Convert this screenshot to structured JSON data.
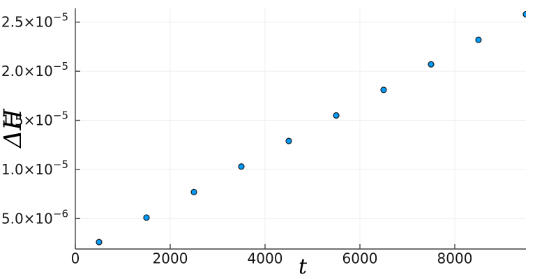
{
  "figure": {
    "background": "#ffffff"
  },
  "chart_data": {
    "type": "scatter",
    "title": "",
    "xlabel": "t",
    "ylabel": "ΔH",
    "x": [
      500,
      1500,
      2500,
      3500,
      4500,
      5500,
      6500,
      7500,
      8500,
      9500
    ],
    "y": [
      2.6e-06,
      5.1e-06,
      7.7e-06,
      1.03e-05,
      1.29e-05,
      1.55e-05,
      1.81e-05,
      2.07e-05,
      2.32e-05,
      2.58e-05
    ],
    "xlim": [
      0,
      9500
    ],
    "ylim": [
      1.9e-06,
      2.64e-05
    ],
    "xticks": {
      "values": [
        0,
        2000,
        4000,
        6000,
        8000
      ],
      "labels": [
        "0",
        "2000",
        "4000",
        "6000",
        "8000"
      ]
    },
    "yticks": {
      "values": [
        5e-06,
        1e-05,
        1.5e-05,
        2e-05,
        2.5e-05
      ],
      "labels": [
        {
          "base": "5.0×10",
          "exp": "−6"
        },
        {
          "base": "1.0×10",
          "exp": "−5"
        },
        {
          "base": "1.5×10",
          "exp": "−5"
        },
        {
          "base": "2.0×10",
          "exp": "−5"
        },
        {
          "base": "2.5×10",
          "exp": "−5"
        }
      ]
    },
    "grid": true,
    "legend": "none",
    "marker": {
      "shape": "circle",
      "radius": 4,
      "fill": "#009AFA",
      "stroke": "#1b1b1b",
      "stroke_width": 1.2
    },
    "colors": {
      "grid": "#efefef",
      "spine": "#444444",
      "tick": "#444444",
      "tick_label": "#151515",
      "axis_label": "#000000"
    }
  }
}
